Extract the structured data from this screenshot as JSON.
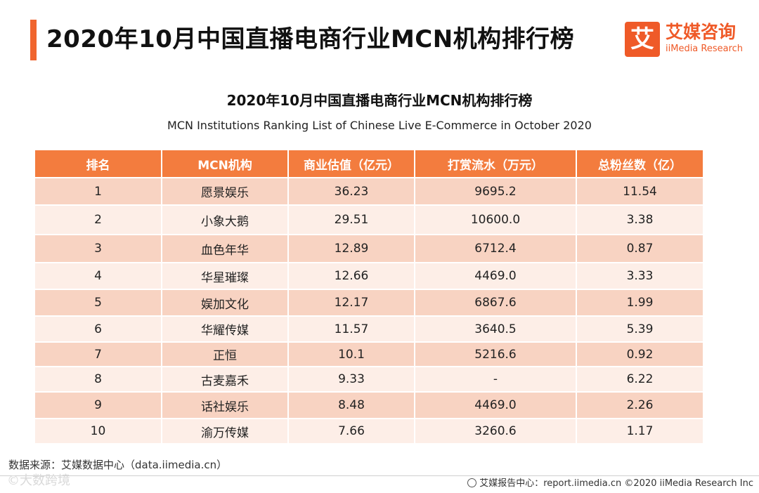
{
  "header": {
    "title": "2020年10月中国直播电商行业MCN机构排行榜"
  },
  "logo": {
    "mark": "艾",
    "name_cn": "艾媒咨询",
    "name_en": "iiMedia Research"
  },
  "table_title": {
    "cn": "2020年10月中国直播电商行业MCN机构排行榜",
    "en": "MCN Institutions Ranking List of Chinese Live E-Commerce in October 2020"
  },
  "columns": [
    "排名",
    "MCN机构",
    "商业估值（亿元）",
    "打赏流水（万元）",
    "总粉丝数（亿）"
  ],
  "rows": [
    [
      "1",
      "愿景娱乐",
      "36.23",
      "9695.2",
      "11.54"
    ],
    [
      "2",
      "小象大鹅",
      "29.51",
      "10600.0",
      "3.38"
    ],
    [
      "3",
      "血色年华",
      "12.89",
      "6712.4",
      "0.87"
    ],
    [
      "4",
      "华星璀璨",
      "12.66",
      "4469.0",
      "3.33"
    ],
    [
      "5",
      "娱加文化",
      "12.17",
      "6867.6",
      "1.99"
    ],
    [
      "6",
      "华耀传媒",
      "11.57",
      "3640.5",
      "5.39"
    ],
    [
      "7",
      "正恒",
      "10.1",
      "5216.6",
      "0.92"
    ],
    [
      "8",
      "古麦嘉禾",
      "9.33",
      "-",
      "6.22"
    ],
    [
      "9",
      "话社娱乐",
      "8.48",
      "4469.0",
      "2.26"
    ],
    [
      "10",
      "渝万传媒",
      "7.66",
      "3260.6",
      "1.17"
    ]
  ],
  "source": "数据来源：艾媒数据中心（data.iimedia.cn）",
  "watermark": "©大数跨境",
  "footer": "艾媒报告中心：report.iimedia.cn  ©2020  iiMedia Research  Inc",
  "colors": {
    "accent": "#f37c3e",
    "row_dark": "#f8d3c2",
    "row_light": "#fdeee7"
  }
}
